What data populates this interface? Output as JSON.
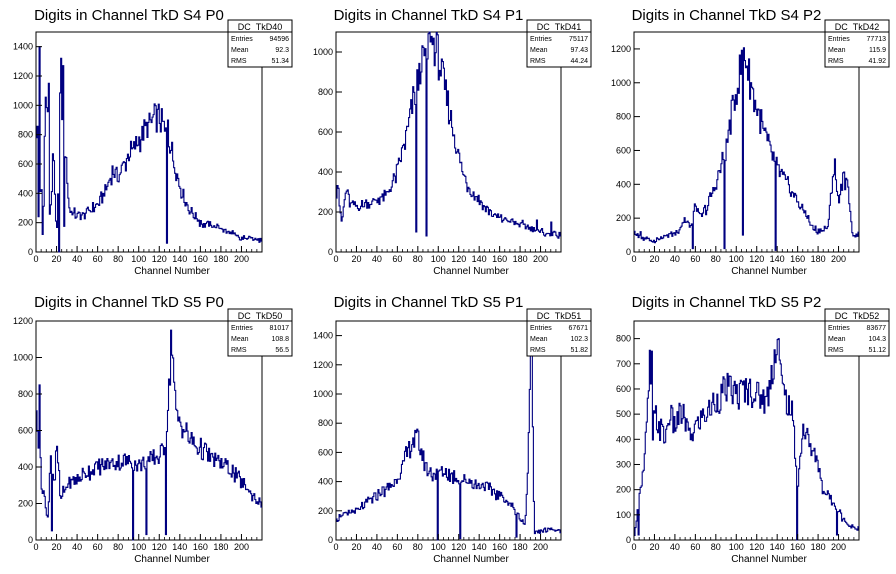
{
  "chart_data": [
    {
      "type": "histogram",
      "title": "Digits in Channel TkD S4 P0",
      "xlabel": "Channel Number",
      "xlim": [
        0,
        220
      ],
      "ylim": [
        0,
        1500
      ],
      "xticks": [
        0,
        20,
        40,
        60,
        80,
        100,
        120,
        140,
        160,
        180,
        200
      ],
      "yticks": [
        0,
        200,
        400,
        600,
        800,
        1000,
        1200,
        1400
      ],
      "stats": {
        "name": "DC_TkD40",
        "rows": [
          [
            "Entries",
            "94596"
          ],
          [
            "Mean",
            "92.3"
          ],
          [
            "RMS",
            "51.34"
          ]
        ]
      },
      "profile": [
        [
          0,
          300
        ],
        [
          1,
          1400
        ],
        [
          2,
          250
        ],
        [
          3,
          200
        ],
        [
          5,
          500
        ],
        [
          7,
          100
        ],
        [
          9,
          1000
        ],
        [
          11,
          1150
        ],
        [
          13,
          250
        ],
        [
          15,
          300
        ],
        [
          17,
          800
        ],
        [
          19,
          200
        ],
        [
          21,
          150
        ],
        [
          23,
          1000
        ],
        [
          25,
          1270
        ],
        [
          27,
          0
        ],
        [
          29,
          800
        ],
        [
          31,
          400
        ],
        [
          33,
          280
        ],
        [
          40,
          250
        ],
        [
          50,
          270
        ],
        [
          60,
          320
        ],
        [
          70,
          450
        ],
        [
          75,
          560
        ],
        [
          80,
          520
        ],
        [
          85,
          580
        ],
        [
          90,
          650
        ],
        [
          100,
          760
        ],
        [
          110,
          870
        ],
        [
          118,
          920
        ],
        [
          122,
          900
        ],
        [
          126,
          800
        ],
        [
          130,
          760
        ],
        [
          135,
          600
        ],
        [
          140,
          450
        ],
        [
          145,
          350
        ],
        [
          150,
          280
        ],
        [
          160,
          200
        ],
        [
          170,
          180
        ],
        [
          180,
          160
        ],
        [
          190,
          130
        ],
        [
          200,
          90
        ],
        [
          210,
          100
        ],
        [
          218,
          80
        ]
      ],
      "spikes": [
        [
          3,
          1400
        ],
        [
          6,
          120
        ],
        [
          12,
          1150
        ],
        [
          22,
          0
        ],
        [
          26,
          1270
        ],
        [
          127,
          60
        ],
        [
          128,
          900
        ]
      ]
    },
    {
      "type": "histogram",
      "title": "Digits in Channel TkD S4 P1",
      "xlabel": "Channel Number",
      "xlim": [
        0,
        220
      ],
      "ylim": [
        0,
        1100
      ],
      "xticks": [
        0,
        20,
        40,
        60,
        80,
        100,
        120,
        140,
        160,
        180,
        200
      ],
      "yticks": [
        0,
        200,
        400,
        600,
        800,
        1000
      ],
      "stats": {
        "name": "DC_TkD41",
        "rows": [
          [
            "Entries",
            "75117"
          ],
          [
            "Mean",
            "97.43"
          ],
          [
            "RMS",
            "44.24"
          ]
        ]
      },
      "profile": [
        [
          0,
          280
        ],
        [
          2,
          380
        ],
        [
          4,
          200
        ],
        [
          6,
          150
        ],
        [
          10,
          320
        ],
        [
          14,
          240
        ],
        [
          20,
          220
        ],
        [
          30,
          240
        ],
        [
          40,
          260
        ],
        [
          50,
          280
        ],
        [
          60,
          400
        ],
        [
          70,
          600
        ],
        [
          75,
          750
        ],
        [
          80,
          850
        ],
        [
          85,
          950
        ],
        [
          90,
          1020
        ],
        [
          95,
          1050
        ],
        [
          100,
          980
        ],
        [
          105,
          850
        ],
        [
          110,
          720
        ],
        [
          115,
          600
        ],
        [
          120,
          480
        ],
        [
          125,
          380
        ],
        [
          130,
          320
        ],
        [
          140,
          260
        ],
        [
          150,
          200
        ],
        [
          160,
          170
        ],
        [
          170,
          150
        ],
        [
          180,
          140
        ],
        [
          190,
          120
        ],
        [
          200,
          100
        ],
        [
          210,
          90
        ],
        [
          218,
          80
        ]
      ],
      "spikes": [
        [
          78,
          100
        ],
        [
          83,
          900
        ],
        [
          88,
          80
        ],
        [
          92,
          1050
        ],
        [
          196,
          160
        ],
        [
          210,
          150
        ]
      ]
    },
    {
      "type": "histogram",
      "title": "Digits in Channel TkD S4 P2",
      "xlabel": "Channel Number",
      "xlim": [
        0,
        220
      ],
      "ylim": [
        0,
        1300
      ],
      "xticks": [
        0,
        20,
        40,
        60,
        80,
        100,
        120,
        140,
        160,
        180,
        200
      ],
      "yticks": [
        0,
        200,
        400,
        600,
        800,
        1000,
        1200
      ],
      "stats": {
        "name": "DC_TkD42",
        "rows": [
          [
            "Entries",
            "77713"
          ],
          [
            "Mean",
            "115.9"
          ],
          [
            "RMS",
            "41.92"
          ]
        ]
      },
      "profile": [
        [
          0,
          120
        ],
        [
          5,
          90
        ],
        [
          10,
          80
        ],
        [
          20,
          70
        ],
        [
          30,
          90
        ],
        [
          40,
          110
        ],
        [
          45,
          130
        ],
        [
          50,
          200
        ],
        [
          55,
          140
        ],
        [
          60,
          280
        ],
        [
          65,
          200
        ],
        [
          70,
          250
        ],
        [
          75,
          320
        ],
        [
          80,
          400
        ],
        [
          85,
          500
        ],
        [
          90,
          600
        ],
        [
          95,
          800
        ],
        [
          100,
          950
        ],
        [
          105,
          1100
        ],
        [
          108,
          1200
        ],
        [
          112,
          1050
        ],
        [
          116,
          950
        ],
        [
          120,
          850
        ],
        [
          125,
          750
        ],
        [
          130,
          650
        ],
        [
          135,
          580
        ],
        [
          140,
          500
        ],
        [
          145,
          450
        ],
        [
          150,
          400
        ],
        [
          155,
          350
        ],
        [
          160,
          300
        ],
        [
          165,
          250
        ],
        [
          170,
          200
        ],
        [
          175,
          150
        ],
        [
          180,
          120
        ],
        [
          190,
          150
        ],
        [
          195,
          500
        ],
        [
          200,
          300
        ],
        [
          205,
          450
        ],
        [
          210,
          350
        ],
        [
          214,
          100
        ]
      ],
      "spikes": [
        [
          6,
          120
        ],
        [
          57,
          20
        ],
        [
          88,
          20
        ],
        [
          106,
          100
        ],
        [
          138,
          10
        ],
        [
          196,
          550
        ],
        [
          202,
          400
        ]
      ]
    },
    {
      "type": "histogram",
      "title": "Digits in Channel TkD S5 P0",
      "xlabel": "Channel Number",
      "xlim": [
        0,
        220
      ],
      "ylim": [
        0,
        1200
      ],
      "xticks": [
        0,
        20,
        40,
        60,
        80,
        100,
        120,
        140,
        160,
        180,
        200
      ],
      "yticks": [
        0,
        200,
        400,
        600,
        800,
        1000,
        1200
      ],
      "stats": {
        "name": "DC_TkD50",
        "rows": [
          [
            "Entries",
            "81017"
          ],
          [
            "Mean",
            "108.8"
          ],
          [
            "RMS",
            "56.5"
          ]
        ]
      },
      "profile": [
        [
          0,
          850
        ],
        [
          2,
          450
        ],
        [
          4,
          600
        ],
        [
          6,
          200
        ],
        [
          8,
          300
        ],
        [
          10,
          150
        ],
        [
          12,
          100
        ],
        [
          14,
          500
        ],
        [
          16,
          400
        ],
        [
          18,
          300
        ],
        [
          20,
          500
        ],
        [
          22,
          400
        ],
        [
          24,
          200
        ],
        [
          26,
          250
        ],
        [
          30,
          300
        ],
        [
          40,
          330
        ],
        [
          50,
          370
        ],
        [
          60,
          400
        ],
        [
          70,
          410
        ],
        [
          80,
          430
        ],
        [
          90,
          430
        ],
        [
          100,
          420
        ],
        [
          110,
          430
        ],
        [
          120,
          460
        ],
        [
          125,
          520
        ],
        [
          128,
          700
        ],
        [
          130,
          850
        ],
        [
          132,
          1150
        ],
        [
          134,
          900
        ],
        [
          136,
          700
        ],
        [
          140,
          650
        ],
        [
          145,
          600
        ],
        [
          150,
          550
        ],
        [
          160,
          500
        ],
        [
          170,
          450
        ],
        [
          180,
          420
        ],
        [
          190,
          380
        ],
        [
          200,
          320
        ],
        [
          210,
          250
        ],
        [
          218,
          200
        ]
      ],
      "spikes": [
        [
          3,
          850
        ],
        [
          15,
          50
        ],
        [
          94,
          0
        ],
        [
          107,
          30
        ],
        [
          110,
          430
        ],
        [
          126,
          30
        ],
        [
          131,
          1150
        ]
      ]
    },
    {
      "type": "histogram",
      "title": "Digits in Channel TkD S5 P1",
      "xlabel": "Channel Number",
      "xlim": [
        0,
        220
      ],
      "ylim": [
        0,
        1500
      ],
      "xticks": [
        0,
        20,
        40,
        60,
        80,
        100,
        120,
        140,
        160,
        180,
        200
      ],
      "yticks": [
        0,
        200,
        400,
        600,
        800,
        1000,
        1200,
        1400
      ],
      "stats": {
        "name": "DC_TkD51",
        "rows": [
          [
            "Entries",
            "67671"
          ],
          [
            "Mean",
            "102.3"
          ],
          [
            "RMS",
            "51.82"
          ]
        ]
      },
      "profile": [
        [
          0,
          150
        ],
        [
          5,
          160
        ],
        [
          10,
          170
        ],
        [
          20,
          200
        ],
        [
          30,
          250
        ],
        [
          40,
          300
        ],
        [
          50,
          350
        ],
        [
          60,
          420
        ],
        [
          65,
          500
        ],
        [
          70,
          600
        ],
        [
          75,
          680
        ],
        [
          80,
          700
        ],
        [
          85,
          550
        ],
        [
          90,
          480
        ],
        [
          95,
          450
        ],
        [
          100,
          470
        ],
        [
          110,
          450
        ],
        [
          120,
          420
        ],
        [
          130,
          400
        ],
        [
          140,
          380
        ],
        [
          150,
          350
        ],
        [
          160,
          300
        ],
        [
          170,
          250
        ],
        [
          180,
          150
        ],
        [
          185,
          100
        ],
        [
          188,
          500
        ],
        [
          190,
          1400
        ],
        [
          192,
          1000
        ],
        [
          194,
          50
        ],
        [
          200,
          60
        ],
        [
          210,
          70
        ],
        [
          218,
          60
        ]
      ],
      "spikes": [
        [
          99,
          0
        ],
        [
          121,
          10
        ],
        [
          176,
          20
        ],
        [
          191,
          1400
        ]
      ]
    },
    {
      "type": "histogram",
      "title": "Digits in Channel TkD S5 P2",
      "xlabel": "Channel Number",
      "xlim": [
        0,
        220
      ],
      "ylim": [
        0,
        870
      ],
      "xticks": [
        0,
        20,
        40,
        60,
        80,
        100,
        120,
        140,
        160,
        180,
        200
      ],
      "yticks": [
        0,
        100,
        200,
        300,
        400,
        500,
        600,
        700,
        800
      ],
      "stats": {
        "name": "DC_TkD52",
        "rows": [
          [
            "Entries",
            "83677"
          ],
          [
            "Mean",
            "104.3"
          ],
          [
            "RMS",
            "51.12"
          ]
        ]
      },
      "profile": [
        [
          0,
          0
        ],
        [
          3,
          100
        ],
        [
          5,
          200
        ],
        [
          8,
          250
        ],
        [
          10,
          300
        ],
        [
          14,
          550
        ],
        [
          16,
          750
        ],
        [
          18,
          350
        ],
        [
          20,
          500
        ],
        [
          25,
          450
        ],
        [
          30,
          400
        ],
        [
          35,
          500
        ],
        [
          40,
          450
        ],
        [
          45,
          500
        ],
        [
          50,
          480
        ],
        [
          55,
          400
        ],
        [
          60,
          450
        ],
        [
          70,
          500
        ],
        [
          80,
          550
        ],
        [
          90,
          600
        ],
        [
          100,
          580
        ],
        [
          110,
          600
        ],
        [
          120,
          580
        ],
        [
          130,
          550
        ],
        [
          140,
          800
        ],
        [
          145,
          600
        ],
        [
          150,
          550
        ],
        [
          155,
          500
        ],
        [
          160,
          200
        ],
        [
          165,
          450
        ],
        [
          170,
          400
        ],
        [
          175,
          350
        ],
        [
          180,
          300
        ],
        [
          185,
          200
        ],
        [
          190,
          180
        ],
        [
          195,
          150
        ],
        [
          200,
          120
        ],
        [
          205,
          80
        ],
        [
          210,
          60
        ],
        [
          216,
          50
        ]
      ],
      "spikes": [
        [
          4,
          20
        ],
        [
          17,
          750
        ],
        [
          141,
          800
        ],
        [
          159,
          0
        ],
        [
          198,
          20
        ]
      ]
    }
  ]
}
